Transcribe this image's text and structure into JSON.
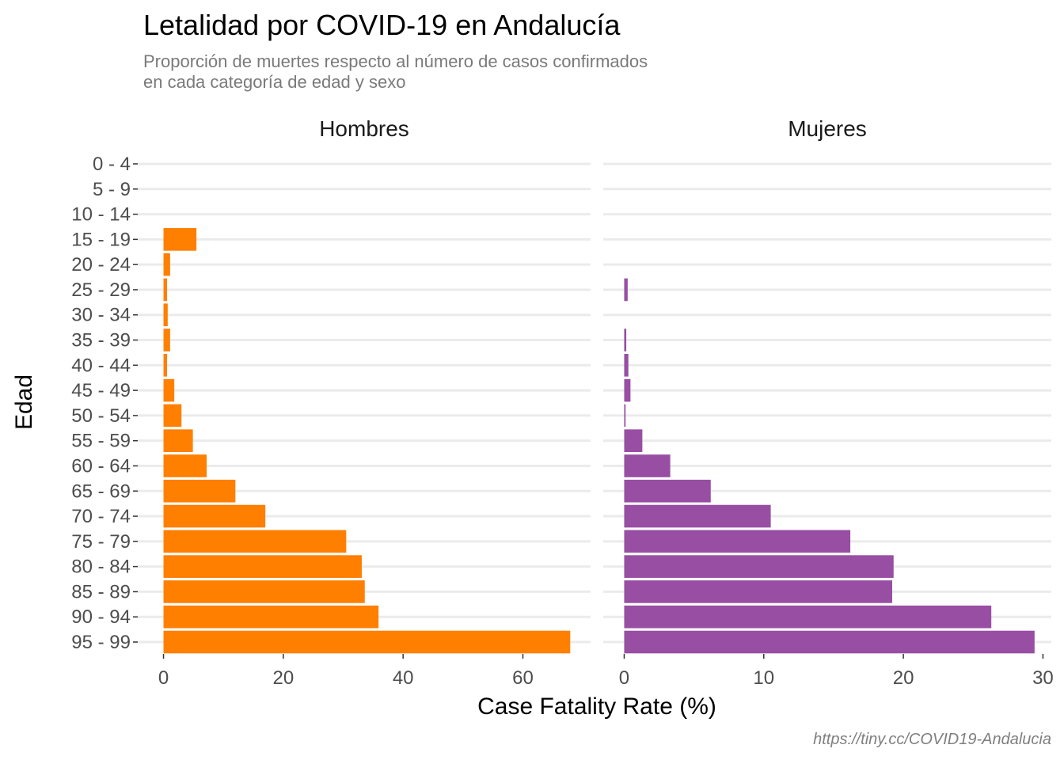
{
  "chart_data": {
    "type": "bar",
    "orientation": "horizontal",
    "title": "Letalidad por COVID-19 en Andalucía",
    "subtitle_lines": [
      "Proporción de muertes respecto al número de casos confirmados",
      "en cada categoría de edad y sexo"
    ],
    "ylabel": "Edad",
    "xlabel": "Case Fatality Rate (%)",
    "caption": "https://tiny.cc/COVID19-Andalucia",
    "categories": [
      "0 - 4",
      "5 - 9",
      "10 - 14",
      "15 - 19",
      "20 - 24",
      "25 - 29",
      "30 - 34",
      "35 - 39",
      "40 - 44",
      "45 - 49",
      "50 - 54",
      "55 - 59",
      "60 - 64",
      "65 - 69",
      "70 - 74",
      "75 - 79",
      "80 - 84",
      "85 - 89",
      "90 - 94",
      "95 - 99"
    ],
    "grid": true,
    "legend": "none",
    "panels": [
      {
        "name": "Hombres",
        "color": "#ff7f00",
        "xlim": [
          -4.3,
          71.3
        ],
        "xticks": [
          0,
          20,
          40,
          60
        ],
        "values": [
          0,
          0,
          0,
          5.5,
          1.1,
          0.6,
          0.7,
          1.1,
          0.6,
          1.8,
          3.0,
          4.9,
          7.2,
          12.0,
          17.0,
          30.5,
          33.1,
          33.6,
          35.9,
          67.9
        ]
      },
      {
        "name": "Mujeres",
        "color": "#984ea3",
        "xlim": [
          -1.5,
          30.6
        ],
        "xticks": [
          0,
          10,
          20,
          30
        ],
        "values": [
          0,
          0,
          0,
          0,
          0,
          0.25,
          0,
          0.15,
          0.3,
          0.45,
          0.1,
          1.3,
          3.3,
          6.2,
          10.5,
          16.2,
          19.3,
          19.2,
          26.3,
          29.4
        ]
      }
    ]
  }
}
